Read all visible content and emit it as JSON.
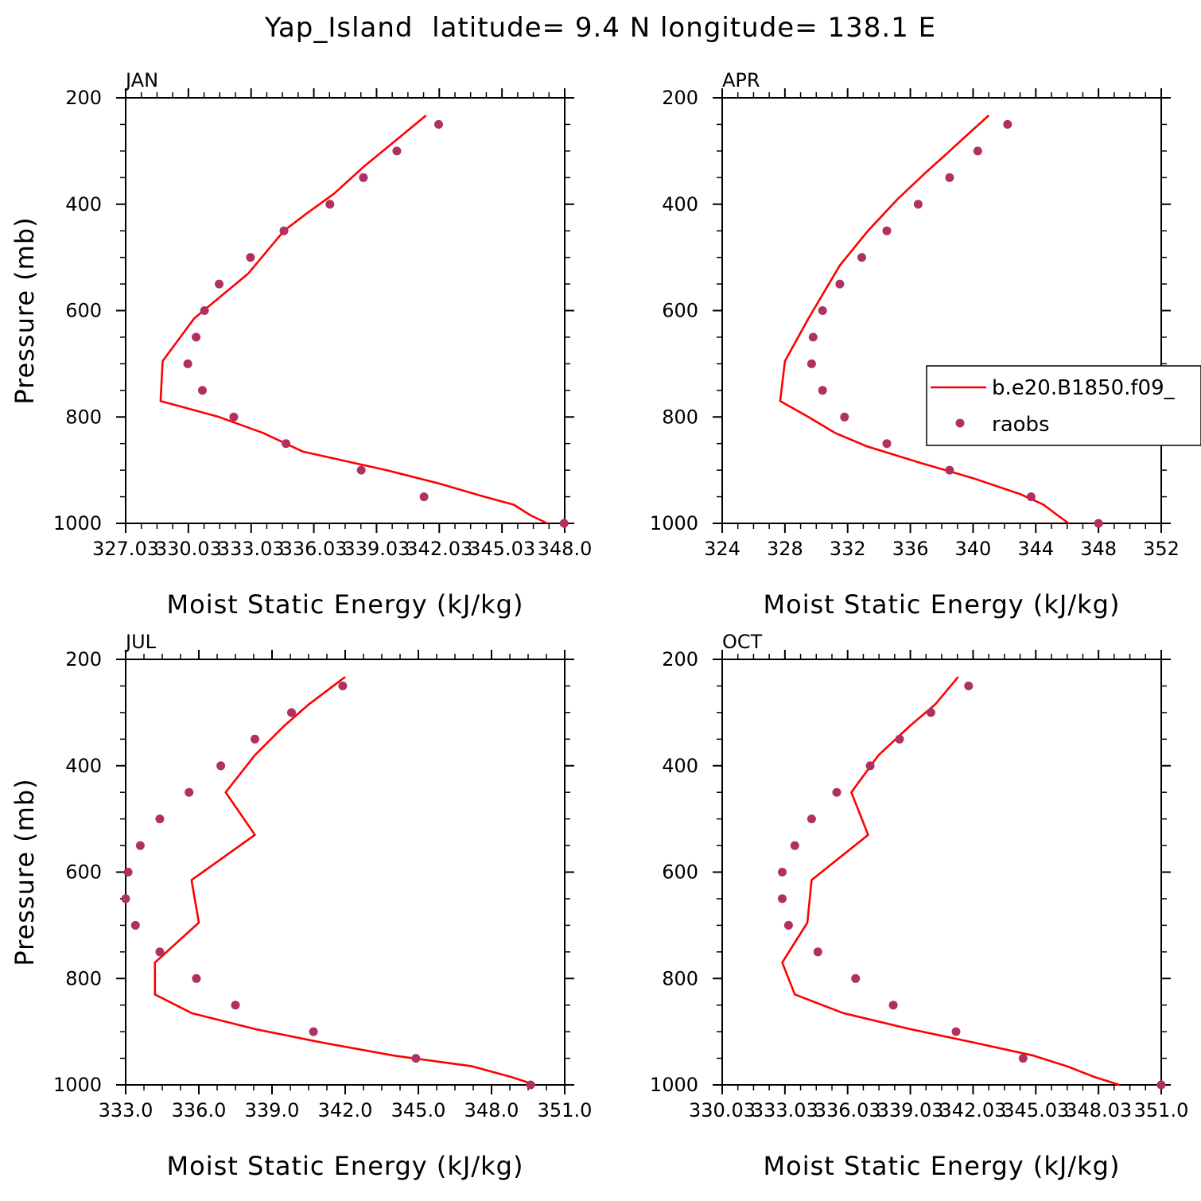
{
  "title": "Yap_Island  latitude= 9.4 N longitude= 138.1 E",
  "legend": {
    "model_label": "b.e20.B1850.f09_",
    "obs_label": "raobs"
  },
  "colors": {
    "model": "#ff0000",
    "obs": "#b03060",
    "axis": "#000000"
  },
  "chart_data": [
    {
      "type": "line",
      "title": "JAN",
      "xlabel": "Moist Static Energy (kJ/kg)",
      "ylabel": "Pressure (mb)",
      "xlim": [
        327.03,
        348.03
      ],
      "x_ticks": [
        "327.03",
        "330.03",
        "333.03",
        "336.03",
        "339.03",
        "342.03",
        "345.03",
        "348.0"
      ],
      "ylim": [
        200,
        1000
      ],
      "y_ticks": [
        "200",
        "400",
        "600",
        "800",
        "1000"
      ],
      "y_inverted": true,
      "series": [
        {
          "name": "b.e20.B1850.f09_",
          "kind": "line",
          "points": [
            [
              341.4,
              233
            ],
            [
              339.8,
              285
            ],
            [
              338.4,
              330
            ],
            [
              337.0,
              380
            ],
            [
              335.6,
              420
            ],
            [
              334.6,
              450
            ],
            [
              332.9,
              530
            ],
            [
              330.3,
              615
            ],
            [
              328.8,
              695
            ],
            [
              328.7,
              770
            ],
            [
              331.5,
              800
            ],
            [
              333.6,
              830
            ],
            [
              335.5,
              865
            ],
            [
              339.5,
              900
            ],
            [
              342.0,
              925
            ],
            [
              344.2,
              950
            ],
            [
              345.6,
              965
            ],
            [
              346.4,
              985
            ],
            [
              347.2,
              1000
            ]
          ]
        },
        {
          "name": "raobs",
          "kind": "scatter",
          "points": [
            [
              342.0,
              250
            ],
            [
              340.0,
              300
            ],
            [
              338.4,
              350
            ],
            [
              336.8,
              400
            ],
            [
              334.6,
              450
            ],
            [
              333.0,
              500
            ],
            [
              331.5,
              550
            ],
            [
              330.8,
              600
            ],
            [
              330.4,
              650
            ],
            [
              330.0,
              700
            ],
            [
              330.7,
              750
            ],
            [
              332.2,
              800
            ],
            [
              334.7,
              850
            ],
            [
              338.3,
              900
            ],
            [
              341.3,
              950
            ],
            [
              348.0,
              1000
            ]
          ]
        }
      ]
    },
    {
      "type": "line",
      "title": "APR",
      "xlabel": "Moist Static Energy (kJ/kg)",
      "ylabel": "",
      "xlim": [
        324,
        352
      ],
      "x_ticks": [
        "324",
        "328",
        "332",
        "336",
        "340",
        "344",
        "348",
        "352"
      ],
      "ylim": [
        200,
        1000
      ],
      "y_ticks": [
        "200",
        "400",
        "600",
        "800",
        "1000"
      ],
      "y_inverted": true,
      "series": [
        {
          "name": "b.e20.B1850.f09_",
          "kind": "line",
          "points": [
            [
              341.0,
              233
            ],
            [
              339.8,
              265
            ],
            [
              338.5,
              300
            ],
            [
              337.0,
              340
            ],
            [
              335.2,
              390
            ],
            [
              333.3,
              450
            ],
            [
              331.5,
              515
            ],
            [
              329.5,
              615
            ],
            [
              328.0,
              695
            ],
            [
              327.7,
              770
            ],
            [
              329.5,
              800
            ],
            [
              331.2,
              830
            ],
            [
              333.2,
              855
            ],
            [
              336.5,
              885
            ],
            [
              340.0,
              915
            ],
            [
              343.0,
              945
            ],
            [
              344.5,
              965
            ],
            [
              345.4,
              985
            ],
            [
              346.1,
              1000
            ]
          ]
        },
        {
          "name": "raobs",
          "kind": "scatter",
          "points": [
            [
              342.2,
              250
            ],
            [
              340.3,
              300
            ],
            [
              338.5,
              350
            ],
            [
              336.5,
              400
            ],
            [
              334.5,
              450
            ],
            [
              332.9,
              500
            ],
            [
              331.5,
              550
            ],
            [
              330.4,
              600
            ],
            [
              329.8,
              650
            ],
            [
              329.7,
              700
            ],
            [
              330.4,
              750
            ],
            [
              331.8,
              800
            ],
            [
              334.5,
              850
            ],
            [
              338.5,
              900
            ],
            [
              343.7,
              950
            ],
            [
              348.0,
              1000
            ]
          ]
        }
      ]
    },
    {
      "type": "line",
      "title": "JUL",
      "xlabel": "Moist Static Energy (kJ/kg)",
      "ylabel": "Pressure (mb)",
      "xlim": [
        333.0,
        351.0
      ],
      "x_ticks": [
        "333.0",
        "336.0",
        "339.0",
        "342.0",
        "345.0",
        "348.0",
        "351.0"
      ],
      "ylim": [
        200,
        1000
      ],
      "y_ticks": [
        "200",
        "400",
        "600",
        "800",
        "1000"
      ],
      "y_inverted": true,
      "series": [
        {
          "name": "b.e20.B1850.f09_",
          "kind": "line",
          "points": [
            [
              342.0,
              233
            ],
            [
              340.5,
              285
            ],
            [
              339.5,
              325
            ],
            [
              338.3,
              380
            ],
            [
              337.1,
              450
            ],
            [
              338.3,
              530
            ],
            [
              335.7,
              615
            ],
            [
              336.0,
              695
            ],
            [
              334.2,
              770
            ],
            [
              334.2,
              830
            ],
            [
              335.7,
              865
            ],
            [
              338.3,
              895
            ],
            [
              341.0,
              920
            ],
            [
              344.0,
              945
            ],
            [
              347.2,
              965
            ],
            [
              348.8,
              985
            ],
            [
              349.8,
              1000
            ]
          ]
        },
        {
          "name": "raobs",
          "kind": "scatter",
          "points": [
            [
              341.9,
              250
            ],
            [
              339.8,
              300
            ],
            [
              338.3,
              350
            ],
            [
              336.9,
              400
            ],
            [
              335.6,
              450
            ],
            [
              334.4,
              500
            ],
            [
              333.6,
              550
            ],
            [
              333.1,
              600
            ],
            [
              333.0,
              650
            ],
            [
              333.4,
              700
            ],
            [
              334.4,
              750
            ],
            [
              335.9,
              800
            ],
            [
              337.5,
              850
            ],
            [
              340.7,
              900
            ],
            [
              344.9,
              950
            ],
            [
              349.6,
              1000
            ]
          ]
        }
      ]
    },
    {
      "type": "line",
      "title": "OCT",
      "xlabel": "Moist Static Energy (kJ/kg)",
      "ylabel": "",
      "xlim": [
        330.03,
        351.0
      ],
      "x_ticks": [
        "330.03",
        "333.03",
        "336.03",
        "339.03",
        "342.03",
        "345.03",
        "348.03",
        "351.0"
      ],
      "ylim": [
        200,
        1000
      ],
      "y_ticks": [
        "200",
        "400",
        "600",
        "800",
        "1000"
      ],
      "y_inverted": true,
      "series": [
        {
          "name": "b.e20.B1850.f09_",
          "kind": "line",
          "points": [
            [
              341.3,
              233
            ],
            [
              340.2,
              285
            ],
            [
              339.0,
              325
            ],
            [
              337.5,
              380
            ],
            [
              336.2,
              450
            ],
            [
              337.0,
              530
            ],
            [
              334.3,
              615
            ],
            [
              334.1,
              695
            ],
            [
              332.9,
              770
            ],
            [
              333.5,
              830
            ],
            [
              335.8,
              865
            ],
            [
              339.0,
              895
            ],
            [
              342.0,
              920
            ],
            [
              344.9,
              945
            ],
            [
              346.5,
              965
            ],
            [
              347.8,
              985
            ],
            [
              349.0,
              1000
            ]
          ]
        },
        {
          "name": "raobs",
          "kind": "scatter",
          "points": [
            [
              341.8,
              250
            ],
            [
              340.0,
              300
            ],
            [
              338.5,
              350
            ],
            [
              337.1,
              400
            ],
            [
              335.5,
              450
            ],
            [
              334.3,
              500
            ],
            [
              333.5,
              550
            ],
            [
              332.9,
              600
            ],
            [
              332.9,
              650
            ],
            [
              333.2,
              700
            ],
            [
              334.6,
              750
            ],
            [
              336.4,
              800
            ],
            [
              338.2,
              850
            ],
            [
              341.2,
              900
            ],
            [
              344.4,
              950
            ],
            [
              351.0,
              1000
            ]
          ]
        }
      ]
    }
  ]
}
